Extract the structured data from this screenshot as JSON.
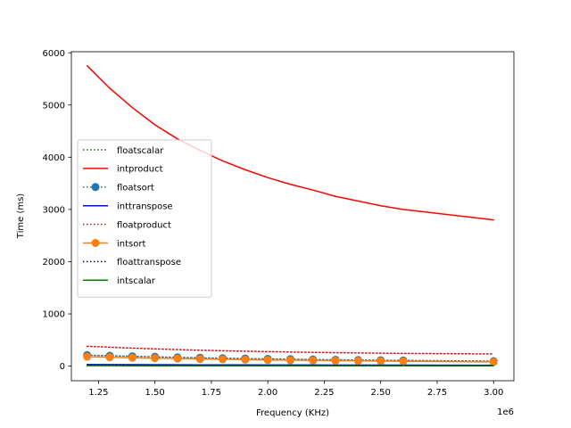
{
  "chart_data": {
    "type": "line",
    "xlabel": "Frequency (KHz)",
    "ylabel": "Time (ms)",
    "x_offset_label": "1e6",
    "xlim": [
      1130000,
      3090000
    ],
    "ylim": [
      -280,
      6020
    ],
    "xticks": [
      1250000,
      1500000,
      1750000,
      2000000,
      2250000,
      2500000,
      2750000,
      3000000
    ],
    "xtick_labels": [
      "1.25",
      "1.50",
      "1.75",
      "2.00",
      "2.25",
      "2.50",
      "2.75",
      "3.00"
    ],
    "yticks": [
      0,
      1000,
      2000,
      3000,
      4000,
      5000,
      6000
    ],
    "ytick_labels": [
      "0",
      "1000",
      "2000",
      "3000",
      "4000",
      "5000",
      "6000"
    ],
    "x": [
      1200000,
      1300000,
      1400000,
      1500000,
      1600000,
      1700000,
      1800000,
      1900000,
      2000000,
      2100000,
      2200000,
      2300000,
      2400000,
      2500000,
      2600000,
      3000000
    ],
    "legend_position": "center-left",
    "grid": false,
    "series": [
      {
        "name": "floatscalar",
        "color": "#008000",
        "linestyle": "dotted",
        "marker": "none",
        "values": [
          20,
          19,
          18,
          17,
          16,
          15,
          15,
          14,
          13,
          13,
          12,
          12,
          11,
          11,
          11,
          10
        ]
      },
      {
        "name": "intproduct",
        "color": "#ff0000",
        "linestyle": "solid",
        "marker": "none",
        "values": [
          5750,
          5320,
          4950,
          4620,
          4350,
          4130,
          3930,
          3760,
          3610,
          3480,
          3370,
          3250,
          3160,
          3070,
          3000,
          2800
        ]
      },
      {
        "name": "floatsort",
        "color": "#1f77b4",
        "linestyle": "dotted",
        "marker": "circle",
        "values": [
          210,
          198,
          188,
          178,
          168,
          160,
          152,
          145,
          139,
          133,
          127,
          122,
          117,
          113,
          109,
          95
        ]
      },
      {
        "name": "inttranspose",
        "color": "#0000ff",
        "linestyle": "solid",
        "marker": "none",
        "values": [
          30,
          28,
          27,
          26,
          25,
          24,
          23,
          22,
          21,
          20,
          20,
          19,
          19,
          18,
          18,
          16
        ]
      },
      {
        "name": "floatproduct",
        "color": "#ff0000",
        "linestyle": "dotted",
        "marker": "none",
        "values": [
          380,
          362,
          345,
          330,
          316,
          304,
          294,
          285,
          277,
          270,
          263,
          257,
          252,
          247,
          243,
          233
        ]
      },
      {
        "name": "intsort",
        "color": "#ff7f0e",
        "linestyle": "solid",
        "marker": "circle",
        "values": [
          180,
          170,
          160,
          152,
          144,
          137,
          130,
          124,
          118,
          113,
          108,
          104,
          100,
          96,
          92,
          80
        ]
      },
      {
        "name": "floattranspose",
        "color": "#00008b",
        "linestyle": "dotted",
        "marker": "none",
        "values": [
          28,
          27,
          26,
          25,
          24,
          23,
          22,
          21,
          20,
          20,
          19,
          19,
          18,
          18,
          17,
          15
        ]
      },
      {
        "name": "intscalar",
        "color": "#008000",
        "linestyle": "solid",
        "marker": "none",
        "values": [
          8,
          8,
          7,
          7,
          7,
          7,
          6,
          6,
          6,
          6,
          6,
          6,
          6,
          5,
          5,
          5
        ]
      }
    ]
  }
}
